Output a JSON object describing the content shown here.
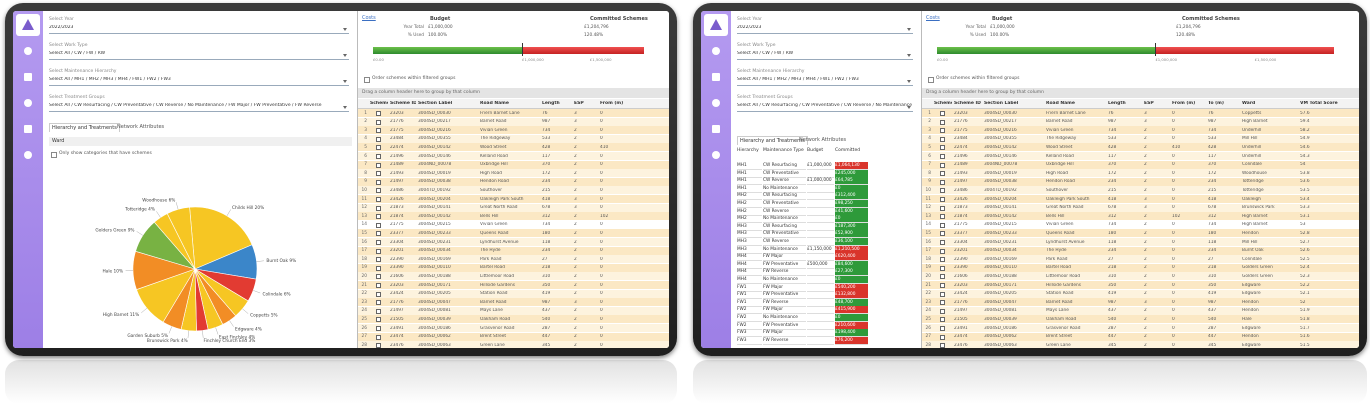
{
  "form": {
    "year_label": "Select Year",
    "year_value": "2022/2023",
    "work_label": "Select Work Type",
    "work_value": "Select All / CW / FW / RW",
    "hier_label": "Select Maintenance Hierarchy",
    "hier_value": "Select All / MH1 / MH2 / MH3 / MH4 / FW1 / FW2 / FW3",
    "treat_label": "Select Treatment Groups",
    "treat_value": "Select All / CW Resurfacing / CW Preventative / CW Reverse / No Maintenance / FW Major / FW Preventative / FW Reverse",
    "tab1": "Hierarchy and Treatments",
    "tab2": "Network Attributes",
    "ward": "Ward",
    "only_show": "Only show categories that have schemes"
  },
  "costs": {
    "tab": "Costs",
    "budget_title": "Budget",
    "committed_title": "Committed Schemes",
    "rows": [
      {
        "label": "Year Total",
        "budget": "£1,000,000",
        "committed": "£1,204,796"
      },
      {
        "label": "% Used",
        "budget": "100.00%",
        "committed": "120.48%"
      }
    ],
    "bar_labels": [
      "£0.00",
      "£1,000,000",
      "£1,500,000"
    ]
  },
  "grid": {
    "order_label": "Order schemes within filtered groups",
    "drag_hint": "Drag a column header here to group by that column",
    "columns": [
      "Scheme Sel",
      "Scheme ID",
      "Section Label",
      "Road Name",
      "Length",
      "ESP",
      "From (m)",
      "To (m)",
      "Ward",
      "VM Total Score"
    ],
    "rows": [
      [
        1,
        23203,
        "3004SD_00030",
        "Friern Barnet Lane",
        76,
        3,
        0,
        76,
        "Coppetts",
        57.6
      ],
      [
        2,
        21776,
        "3004SD_00217",
        "Barnet Road",
        987,
        3,
        0,
        987,
        "High Barnet",
        59.4
      ],
      [
        3,
        21775,
        "3004SD_00216",
        "Vivian Green",
        734,
        2,
        0,
        734,
        "Underhill",
        58.2
      ],
      [
        4,
        23484,
        "3004SD_00355",
        "The Ridgeway",
        533,
        2,
        0,
        533,
        "Mill Hill",
        54.9
      ],
      [
        5,
        22474,
        "3004SD_00142",
        "Wood Street",
        428,
        2,
        410,
        428,
        "Underhill",
        54.6
      ],
      [
        6,
        21496,
        "3004SD_00146",
        "Kelland Road",
        117,
        2,
        0,
        117,
        "Underhill",
        54.3
      ],
      [
        7,
        21489,
        "3004ND_00078",
        "Uxbridge Hill",
        370,
        2,
        0,
        370,
        "Colindale",
        54.0
      ],
      [
        8,
        21493,
        "3004SD_00019",
        "High Road",
        172,
        2,
        0,
        172,
        "Woodhouse",
        53.8
      ],
      [
        9,
        21497,
        "3004SD_00038",
        "Hendon Road",
        234,
        2,
        0,
        234,
        "Totteridge",
        53.6
      ],
      [
        10,
        23486,
        "3004TD_00192",
        "Southover",
        215,
        2,
        0,
        215,
        "Totteridge",
        53.5
      ],
      [
        11,
        23426,
        "3004SD_00204",
        "Oakleigh Park South",
        418,
        3,
        0,
        418,
        "Oakleigh",
        53.4
      ],
      [
        12,
        21873,
        "3004SD_00141",
        "Great North Road",
        678,
        3,
        0,
        678,
        "Brunswick Park",
        53.3
      ],
      [
        13,
        21874,
        "3004SD_00142",
        "Bells Hill",
        312,
        2,
        102,
        312,
        "High Barnet",
        53.1
      ],
      [
        14,
        21775,
        "3004SD_00215",
        "Vivian Green",
        734,
        2,
        0,
        734,
        "High Barnet",
        53.0
      ],
      [
        15,
        23377,
        "3004SD_00233",
        "Queens Road",
        180,
        2,
        0,
        180,
        "Hendon",
        52.8
      ],
      [
        16,
        23304,
        "3004SD_00231",
        "Lyndhurst Avenue",
        118,
        2,
        0,
        118,
        "Mill Hill",
        52.7
      ],
      [
        17,
        23201,
        "3004SD_00034",
        "The Hyde",
        234,
        2,
        0,
        234,
        "Burnt Oak",
        52.6
      ],
      [
        18,
        22390,
        "3004SD_00169",
        "Park Road",
        27,
        2,
        0,
        27,
        "Colindale",
        52.5
      ],
      [
        19,
        23390,
        "3004SD_00110",
        "Bartel Road",
        218,
        2,
        0,
        218,
        "Golders Green",
        52.4
      ],
      [
        20,
        21606,
        "3004SD_00188",
        "Littlemoor Road",
        310,
        2,
        0,
        310,
        "Golders Green",
        52.3
      ],
      [
        21,
        23203,
        "3004SD_00171",
        "Hillside Gardens",
        350,
        2,
        0,
        350,
        "Edgware",
        52.2
      ],
      [
        22,
        23424,
        "3004SD_00205",
        "Station Road",
        419,
        2,
        0,
        419,
        "Edgware",
        52.1
      ],
      [
        23,
        21776,
        "3004SD_00047",
        "Barnet Road",
        987,
        3,
        0,
        987,
        "Hendon",
        52.0
      ],
      [
        24,
        21497,
        "3004SD_00081",
        "Mays Lane",
        437,
        2,
        0,
        437,
        "Hendon",
        51.9
      ],
      [
        25,
        21505,
        "3004SD_00039",
        "Oakham Road",
        540,
        2,
        0,
        540,
        "Hale",
        51.8
      ],
      [
        26,
        23491,
        "3004SD_00186",
        "Grasvenor Road",
        287,
        2,
        0,
        287,
        "Edgware",
        51.7
      ],
      [
        27,
        23474,
        "3004SD_00062",
        "Brent Street",
        447,
        2,
        0,
        447,
        "Hendon",
        51.6
      ],
      [
        28,
        23476,
        "3004SD_00063",
        "Green Lane",
        345,
        2,
        0,
        345,
        "Edgware",
        51.5
      ]
    ]
  },
  "chart_data": {
    "type": "pie",
    "categories": [
      "Childs Hill",
      "Burnt Oak",
      "Colindale",
      "Coppetts",
      "Edgware",
      "East Finchley",
      "Finchley Church End",
      "Brunswick Park",
      "Garden Suburb",
      "High Barnet",
      "Hale",
      "Golders Green",
      "Totteridge",
      "Woodhouse"
    ],
    "values": [
      20,
      9,
      6,
      5,
      4,
      4,
      3,
      4,
      5,
      11,
      10,
      9,
      4,
      6
    ],
    "value_labels": [
      "20%",
      "9%",
      "6%",
      "5%",
      "4%",
      "4%",
      "3%",
      "4%",
      "5%",
      "11%",
      "10%",
      "9%",
      "4%",
      "6%"
    ],
    "colors": [
      "#f6c623",
      "#3b86c9",
      "#e23b32",
      "#f6c623",
      "#f28d25",
      "#f6c623",
      "#e23b32",
      "#f6c623",
      "#f28d25",
      "#f6c623",
      "#f28d25",
      "#78b243",
      "#f6c623",
      "#f6c623"
    ]
  },
  "hierarchy_table": {
    "columns": [
      "Hierarchy",
      "Maintenance Type",
      "Budget",
      "Committed"
    ],
    "status_colors": {
      "red": "#d9342b",
      "green": "#2e9a3a"
    },
    "rows": [
      [
        "MH1",
        "CW Resurfacing",
        "£1,000,000",
        "£1,064,130",
        "red"
      ],
      [
        "MH1",
        "CW Preventative",
        "",
        "£245,000",
        "green"
      ],
      [
        "MH1",
        "CW Reverse",
        "£1,000,000",
        "£64,785",
        "green"
      ],
      [
        "MH1",
        "No Maintenance",
        "",
        "£0",
        "green"
      ],
      [
        "MH2",
        "CW Resurfacing",
        "",
        "£312,400",
        "green"
      ],
      [
        "MH2",
        "CW Preventative",
        "",
        "£98,250",
        "green"
      ],
      [
        "MH2",
        "CW Reverse",
        "",
        "£41,600",
        "green"
      ],
      [
        "MH2",
        "No Maintenance",
        "",
        "£0",
        "green"
      ],
      [
        "MH3",
        "CW Resurfacing",
        "",
        "£187,300",
        "green"
      ],
      [
        "MH3",
        "CW Preventative",
        "",
        "£52,900",
        "green"
      ],
      [
        "MH3",
        "CW Reverse",
        "",
        "£36,100",
        "green"
      ],
      [
        "MH3",
        "No Maintenance",
        "£1,150,000",
        "£1,210,500",
        "red"
      ],
      [
        "MH4",
        "FW Major",
        "",
        "£620,400",
        "red"
      ],
      [
        "MH4",
        "FW Preventative",
        "£500,000",
        "£84,600",
        "green"
      ],
      [
        "MH4",
        "FW Reverse",
        "",
        "£27,300",
        "green"
      ],
      [
        "MH4",
        "No Maintenance",
        "",
        "£0",
        "green"
      ],
      [
        "FW1",
        "FW Major",
        "",
        "£540,200",
        "red"
      ],
      [
        "FW1",
        "FW Preventative",
        "",
        "£132,800",
        "red"
      ],
      [
        "FW1",
        "FW Reverse",
        "",
        "£48,700",
        "green"
      ],
      [
        "FW2",
        "FW Major",
        "",
        "£415,900",
        "red"
      ],
      [
        "FW2",
        "No Maintenance",
        "",
        "£0",
        "green"
      ],
      [
        "FW2",
        "FW Preventative",
        "",
        "£210,600",
        "red"
      ],
      [
        "FW3",
        "FW Major",
        "",
        "£198,400",
        "green"
      ],
      [
        "FW3",
        "FW Reverse",
        "",
        "£76,200",
        "red"
      ]
    ]
  }
}
